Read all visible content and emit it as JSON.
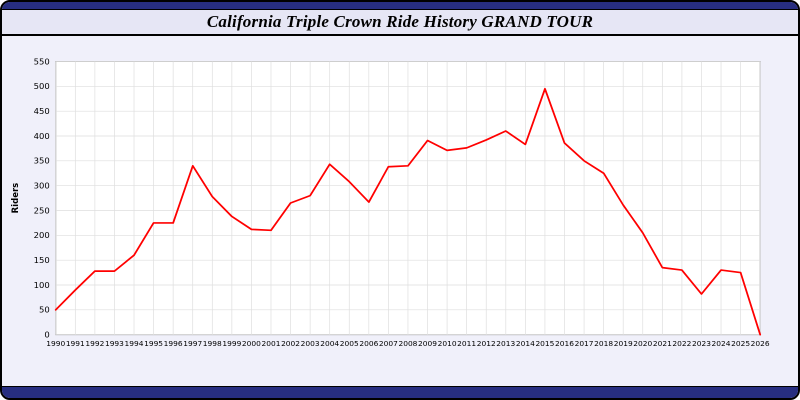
{
  "window": {
    "title": "California Triple Crown Ride History GRAND TOUR"
  },
  "colors": {
    "navy": "#272e81",
    "titlebar_bg": "#e6e6f5",
    "panel_bg": "#f0f0fa",
    "plot_bg": "#ffffff",
    "plot_border": "#9a9a9a",
    "grid": "#dedede",
    "line": "#ff0000",
    "axis_text": "#000000"
  },
  "chart_data": {
    "type": "line",
    "title": "California Triple Crown Ride History GRAND TOUR",
    "xlabel": "",
    "ylabel": "Riders",
    "ylim": [
      0,
      550
    ],
    "ytick_step": 50,
    "grid": true,
    "legend": "none",
    "x": [
      1990,
      1991,
      1992,
      1993,
      1994,
      1995,
      1996,
      1997,
      1998,
      1999,
      2000,
      2001,
      2002,
      2003,
      2004,
      2005,
      2006,
      2007,
      2008,
      2009,
      2010,
      2011,
      2012,
      2013,
      2014,
      2015,
      2016,
      2017,
      2018,
      2019,
      2020,
      2021,
      2022,
      2023,
      2024,
      2025,
      2026
    ],
    "series": [
      {
        "name": "Riders",
        "color": "#ff0000",
        "values": [
          50,
          90,
          128,
          128,
          160,
          225,
          225,
          340,
          278,
          238,
          212,
          210,
          265,
          280,
          343,
          308,
          267,
          338,
          340,
          391,
          371,
          376,
          392,
          410,
          383,
          495,
          386,
          350,
          325,
          261,
          205,
          135,
          130,
          82,
          130,
          125,
          0
        ]
      }
    ]
  }
}
